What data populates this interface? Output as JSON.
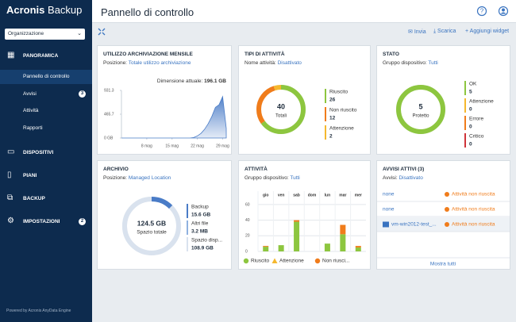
{
  "sidebar": {
    "brand": "Acronis",
    "brand_product": "Backup",
    "org": "Organizzazione",
    "sections": [
      {
        "label": "PANORAMICA",
        "items": [
          {
            "label": "Pannello di controllo"
          },
          {
            "label": "Avvisi",
            "badge": 3
          },
          {
            "label": "Attività"
          },
          {
            "label": "Rapporti"
          }
        ]
      },
      {
        "label": "DISPOSITIVI"
      },
      {
        "label": "PIANI"
      },
      {
        "label": "BACKUP"
      },
      {
        "label": "IMPOSTAZIONI",
        "badge": 2
      }
    ],
    "footer": "Powered by Acronis AnyData Engine"
  },
  "header": {
    "title": "Pannello di controllo"
  },
  "toolbar": {
    "send": "Invia",
    "download": "Scarica",
    "add": "Aggiungi widget"
  },
  "widgets": {
    "storage": {
      "title": "UTILIZZO ARCHIVIAZIONE MENSILE",
      "filter_label": "Posizione:",
      "filter": "Totale utilizzo archiviazione",
      "size_label": "Dimensione attuale:",
      "size": "196.1 GB",
      "chart": {
        "type": "area",
        "color": "#4a7cc7",
        "x": [
          1,
          5,
          10,
          15,
          20,
          21,
          22,
          23,
          24,
          25,
          26,
          27,
          28,
          29,
          30
        ],
        "values": [
          0,
          0,
          0,
          0,
          0,
          10,
          40,
          90,
          170,
          280,
          420,
          600,
          650,
          810,
          190
        ],
        "xlim": [
          1,
          30
        ],
        "ylim": [
          0,
          931.3
        ],
        "yticks": [
          {
            "value": 0,
            "label": "0 GB"
          },
          465.7,
          931.3
        ],
        "xticks": [
          {
            "value": 8,
            "label": "8 mag"
          },
          {
            "value": 15,
            "label": "15 mag"
          },
          {
            "value": 22,
            "label": "22 mag"
          },
          {
            "value": 29,
            "label": "29 mag"
          }
        ]
      }
    },
    "activity_types": {
      "title": "TIPI DI ATTIVITÀ",
      "filter_label": "Nome attività:",
      "filter": "Disattivato",
      "total": 40,
      "total_label": "Totali",
      "series": [
        {
          "name": "Riuscito",
          "color": "#8dc63f",
          "value": 26
        },
        {
          "name": "Non riuscito",
          "color": "#f07c1b",
          "value": 12
        },
        {
          "name": "Attenzione",
          "color": "#f5b82e",
          "value": 2
        }
      ]
    },
    "status": {
      "title": "STATO",
      "filter_label": "Gruppo dispositivo:",
      "filter": "Tutti",
      "total": 5,
      "total_label": "Protetto",
      "series": [
        {
          "name": "OK",
          "color": "#8dc63f",
          "value": 5
        },
        {
          "name": "Attenzione",
          "color": "#f5b82e",
          "value": 0
        },
        {
          "name": "Errore",
          "color": "#f07c1b",
          "value": 0
        },
        {
          "name": "Critico",
          "color": "#d0343a",
          "value": 0
        }
      ]
    },
    "archive": {
      "title": "ARCHIVIO",
      "filter_label": "Posizione:",
      "filter": "Managed Location",
      "total": {
        "value": 124.5,
        "label": "124.5 GB"
      },
      "total_label": "Spazio totale",
      "series": [
        {
          "name": "Backup",
          "color": "#4a7cc7",
          "value": 15.6,
          "value_label": "15.6 GB"
        },
        {
          "name": "Altri file",
          "color": "#8fb1e0",
          "value": 0.0032,
          "value_label": "3.2 MB"
        },
        {
          "name": "Spazio disp...",
          "color": "#d9e2ee",
          "value": 108.9,
          "value_label": "108.9 GB"
        }
      ]
    },
    "activities": {
      "title": "ATTIVITÀ",
      "filter_label": "Gruppo dispositivo:",
      "filter": "Tutti",
      "chart": {
        "type": "bar",
        "stacked": true,
        "categories": [
          "gio",
          "ven",
          "sab",
          "dom",
          "lun",
          "mar",
          "mer"
        ],
        "ylim": [
          0,
          65
        ],
        "yticks": [
          0,
          20,
          40,
          60
        ],
        "series": [
          {
            "name": "Riuscito",
            "color": "#8dc63f",
            "values": [
              6,
              8,
              38,
              0,
              10,
              22,
              5
            ]
          },
          {
            "name": "Attenzione",
            "color": "#f5b82e",
            "values": [
              0,
              0,
              0,
              0,
              0,
              0,
              0
            ]
          },
          {
            "name": "Non riusci...",
            "color": "#f07c1b",
            "values": [
              1,
              0,
              2,
              0,
              0,
              12,
              2
            ]
          }
        ]
      }
    },
    "alerts": {
      "title": "AVVISI ATTIVI (3)",
      "filter_label": "Avvisi:",
      "filter": "Disattivato",
      "items": [
        {
          "device": "none",
          "status": "Attività non riuscita"
        },
        {
          "device": "none",
          "status": "Attività non riuscita"
        },
        {
          "device": "vm-win2012-test_...",
          "status": "Attività non riuscita"
        }
      ],
      "more": "Mostra tutti"
    }
  }
}
